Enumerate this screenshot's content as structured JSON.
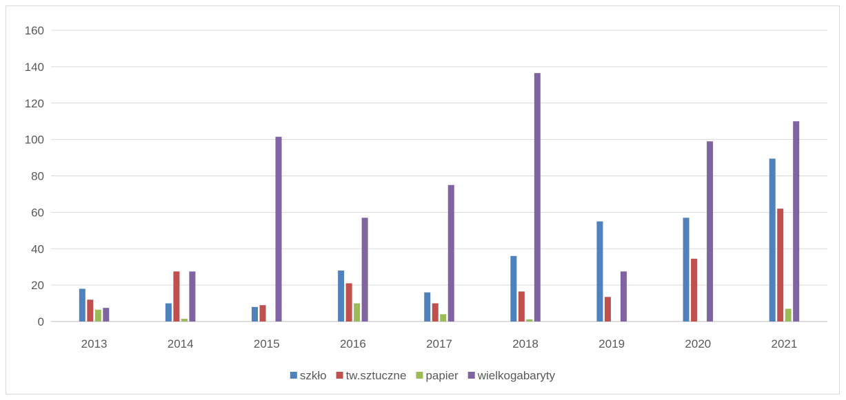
{
  "chart_data": {
    "type": "bar",
    "title": "",
    "xlabel": "",
    "ylabel": "",
    "categories": [
      "2013",
      "2014",
      "2015",
      "2016",
      "2017",
      "2018",
      "2019",
      "2020",
      "2021"
    ],
    "ylim": [
      0,
      160
    ],
    "yticks": [
      0,
      20,
      40,
      60,
      80,
      100,
      120,
      140,
      160
    ],
    "grid": true,
    "legend_position": "bottom",
    "series": [
      {
        "name": "szkło",
        "color": "#4f81bd",
        "values": [
          18,
          10,
          8,
          28,
          16,
          36,
          55,
          57,
          89.5
        ]
      },
      {
        "name": "tw.sztuczne",
        "color": "#c0504d",
        "values": [
          12,
          27.5,
          9,
          21,
          10,
          16.5,
          13.5,
          34.5,
          62
        ]
      },
      {
        "name": "papier",
        "color": "#9bbb59",
        "values": [
          6.5,
          1.5,
          0,
          10,
          4,
          1.2,
          0,
          0,
          7
        ]
      },
      {
        "name": "wielkogabaryty",
        "color": "#8064a2",
        "values": [
          7.5,
          27.5,
          101.5,
          57,
          75,
          136.5,
          27.5,
          99,
          110
        ]
      }
    ]
  }
}
